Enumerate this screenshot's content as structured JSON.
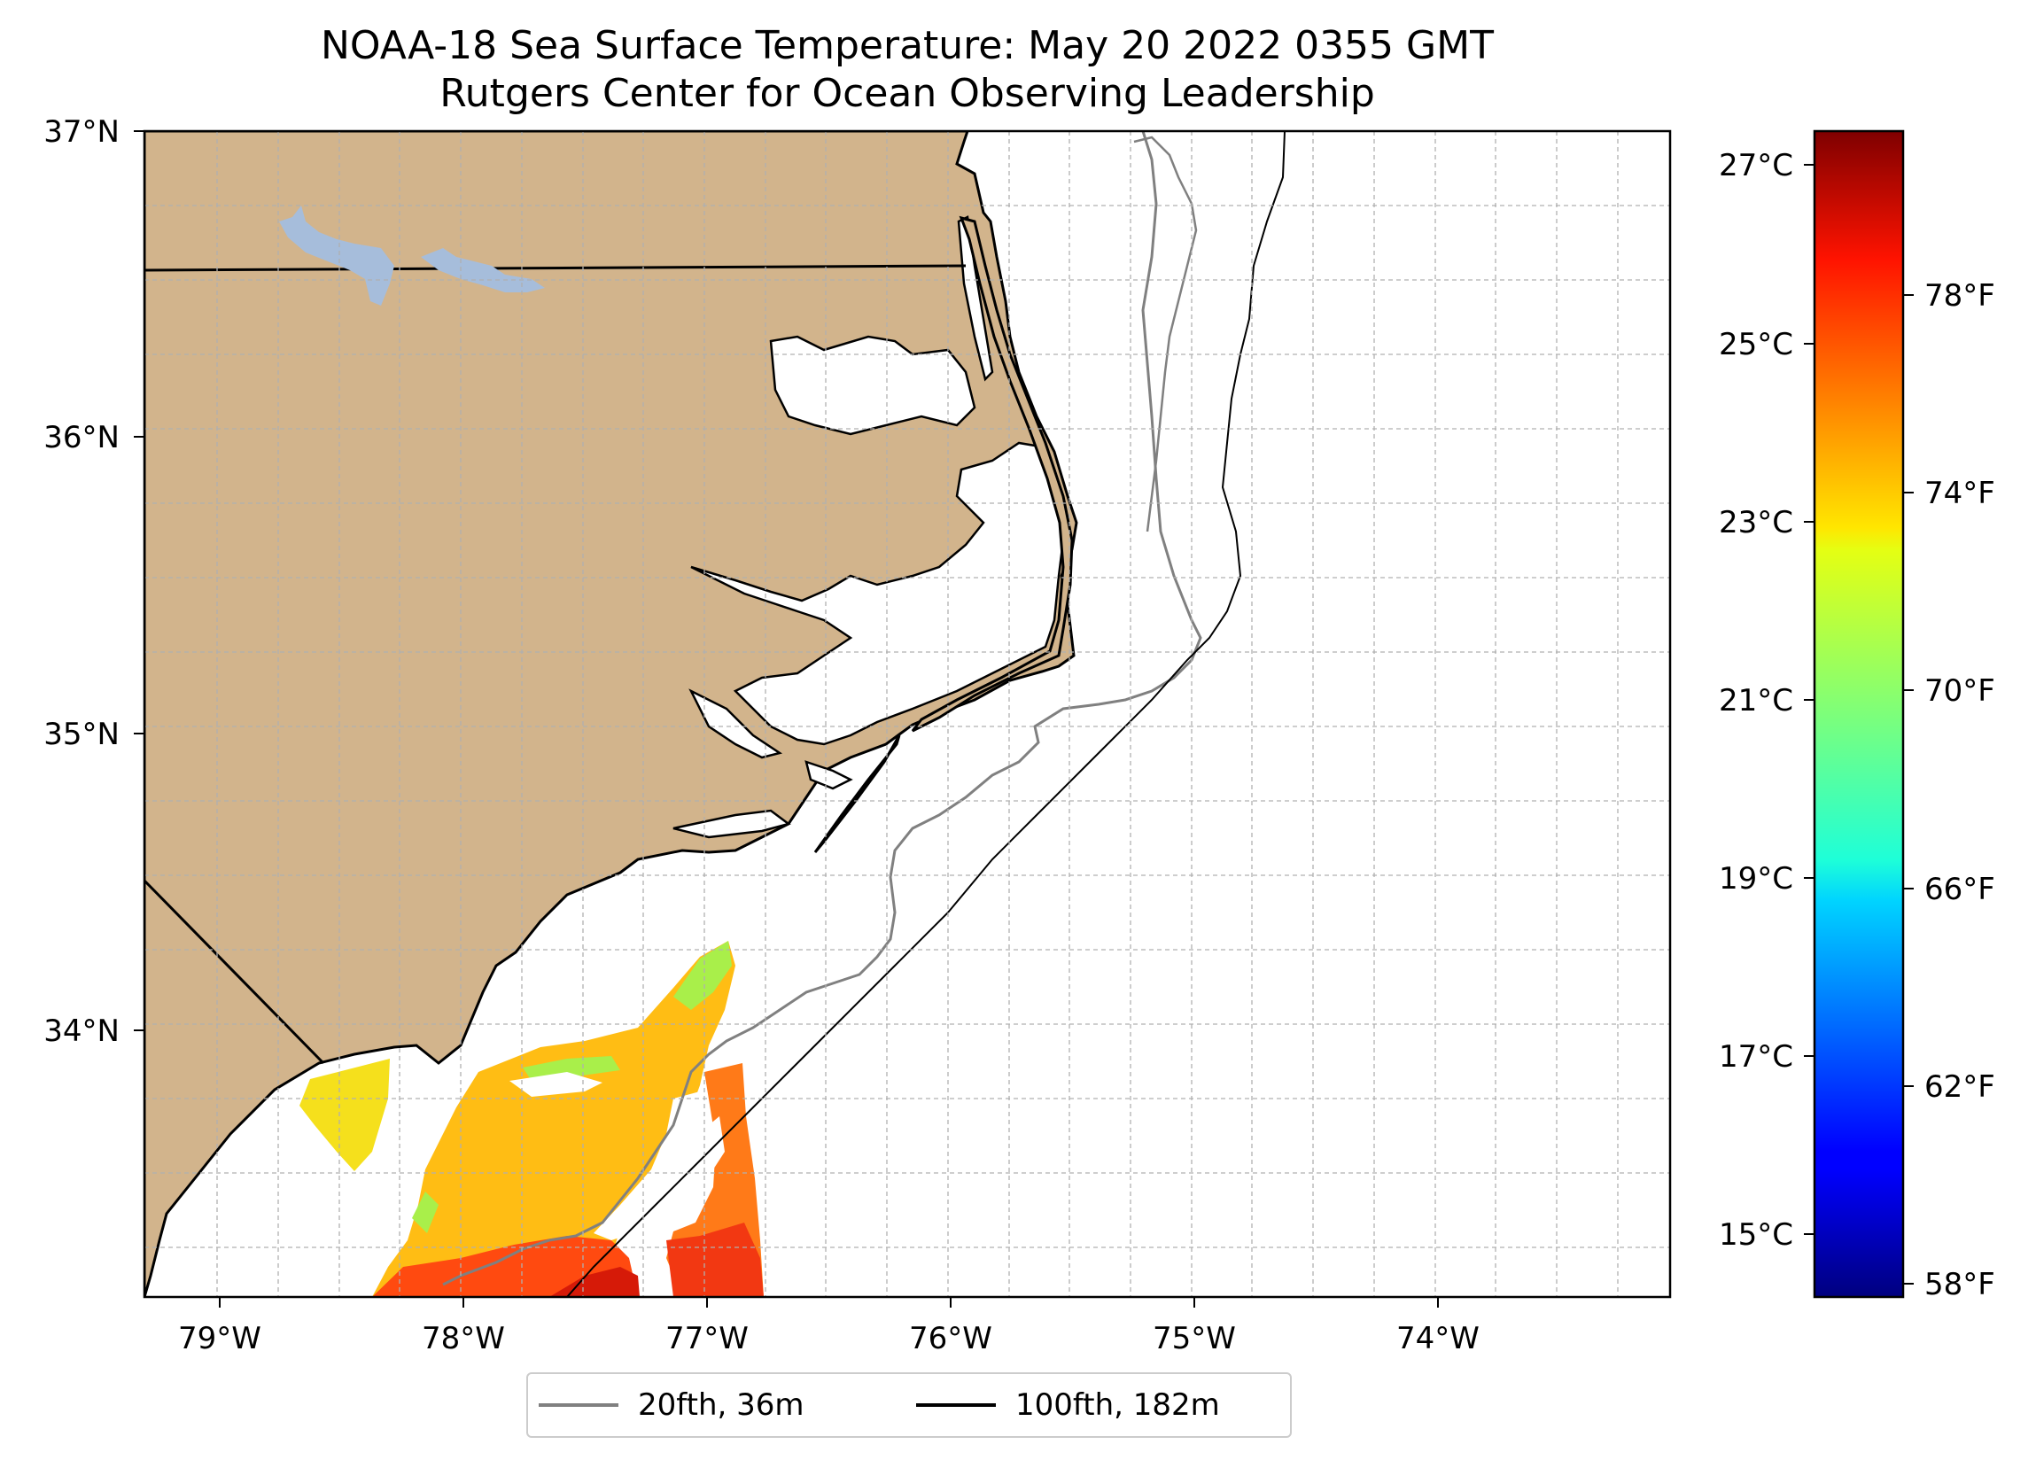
{
  "title": "NOAA-18 Sea Surface Temperature: May 20 2022 0355 GMT",
  "subtitle": "Rutgers Center for Ocean Observing Leadership",
  "map": {
    "lon_range": [
      -79.3,
      -73.0
    ],
    "lat_range": [
      33.05,
      37.0
    ],
    "lat_labels": [
      "37°N",
      "36°N",
      "35°N",
      "34°N"
    ],
    "lon_labels": [
      "79°W",
      "78°W",
      "77°W",
      "76°W",
      "75°W",
      "74°W"
    ],
    "gridlines": true
  },
  "colorbar": {
    "colormap": "jet",
    "celsius_labels": [
      "27°C",
      "25°C",
      "23°C",
      "21°C",
      "19°C",
      "17°C",
      "15°C"
    ],
    "fahrenheit_labels": [
      "78°F",
      "74°F",
      "70°F",
      "66°F",
      "62°F",
      "58°F"
    ]
  },
  "legend": {
    "items": [
      {
        "label": "20fth, 36m",
        "color": "#808080"
      },
      {
        "label": "100fth, 182m",
        "color": "#000000"
      }
    ]
  },
  "colors": {
    "land": "#d2b48c",
    "lake": "#a6bddb",
    "coast": "#000000",
    "isobath_20fth": "#808080",
    "isobath_100fth": "#000000"
  }
}
